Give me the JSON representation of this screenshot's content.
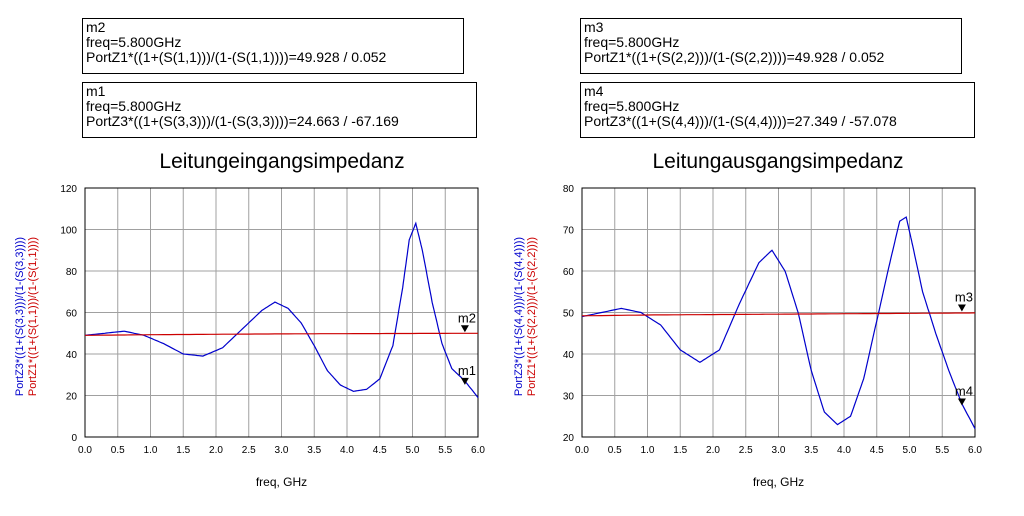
{
  "chart_data": [
    {
      "type": "line",
      "title": "Leitungeingangsimpedanz",
      "xlabel": "freq, GHz",
      "ylabel_series": [
        "PortZ3*((1+(S(3,3)))/(1-(S(3,3))))",
        "PortZ1*((1+(S(1,1)))/(1-(S(1,1))))"
      ],
      "xlim": [
        0,
        6
      ],
      "ylim": [
        0,
        120
      ],
      "xticks": [
        "0.0",
        "0.5",
        "1.0",
        "1.5",
        "2.0",
        "2.5",
        "3.0",
        "3.5",
        "4.0",
        "4.5",
        "5.0",
        "5.5",
        "6.0"
      ],
      "yticks": [
        "0",
        "20",
        "40",
        "60",
        "80",
        "100",
        "120"
      ],
      "grid": true,
      "series": [
        {
          "color": "#0000cc",
          "x": [
            0,
            0.3,
            0.6,
            0.9,
            1.2,
            1.5,
            1.8,
            2.1,
            2.4,
            2.7,
            2.9,
            3.1,
            3.3,
            3.5,
            3.7,
            3.9,
            4.1,
            4.3,
            4.5,
            4.7,
            4.85,
            4.95,
            5.05,
            5.15,
            5.3,
            5.45,
            5.6,
            5.8,
            6.0
          ],
          "y": [
            49,
            50,
            51,
            49,
            45,
            40,
            39,
            43,
            52,
            61,
            65,
            62,
            55,
            44,
            32,
            25,
            22,
            23,
            28,
            44,
            72,
            95,
            103,
            90,
            65,
            45,
            33,
            27,
            19
          ]
        },
        {
          "color": "#cc0000",
          "x": [
            0,
            1,
            2,
            3,
            4,
            5,
            6
          ],
          "y": [
            49,
            49.3,
            49.5,
            49.7,
            49.8,
            49.9,
            50
          ]
        }
      ],
      "markers": [
        {
          "label": "m2",
          "x": 5.8,
          "y": 50
        },
        {
          "label": "m1",
          "x": 5.8,
          "y": 24.663
        }
      ]
    },
    {
      "type": "line",
      "title": "Leitungausgangsimpedanz",
      "xlabel": "freq, GHz",
      "ylabel_series": [
        "PortZ3*((1+(S(4,4)))/(1-(S(4,4))))",
        "PortZ1*((1+(S(2,2)))/(1-(S(2,2))))"
      ],
      "xlim": [
        0,
        6
      ],
      "ylim": [
        20,
        80
      ],
      "xticks": [
        "0.0",
        "0.5",
        "1.0",
        "1.5",
        "2.0",
        "2.5",
        "3.0",
        "3.5",
        "4.0",
        "4.5",
        "5.0",
        "5.5",
        "6.0"
      ],
      "yticks": [
        "20",
        "30",
        "40",
        "50",
        "60",
        "70",
        "80"
      ],
      "grid": true,
      "series": [
        {
          "color": "#0000cc",
          "x": [
            0,
            0.3,
            0.6,
            0.9,
            1.2,
            1.5,
            1.8,
            2.1,
            2.4,
            2.7,
            2.9,
            3.1,
            3.3,
            3.5,
            3.7,
            3.9,
            4.1,
            4.3,
            4.5,
            4.7,
            4.85,
            4.95,
            5.05,
            5.2,
            5.4,
            5.6,
            5.8,
            6.0
          ],
          "y": [
            49,
            50,
            51,
            50,
            47,
            41,
            38,
            41,
            52,
            62,
            65,
            60,
            50,
            36,
            26,
            23,
            25,
            34,
            48,
            62,
            72,
            73,
            66,
            55,
            45,
            36,
            28,
            22
          ]
        },
        {
          "color": "#cc0000",
          "x": [
            0,
            1,
            2,
            3,
            4,
            5,
            6
          ],
          "y": [
            49.2,
            49.4,
            49.5,
            49.6,
            49.7,
            49.8,
            49.9
          ]
        }
      ],
      "markers": [
        {
          "label": "m3",
          "x": 5.8,
          "y": 50
        },
        {
          "label": "m4",
          "x": 5.8,
          "y": 27.349
        }
      ]
    }
  ],
  "marker_boxes": {
    "m2": {
      "name": "m2",
      "freq": "freq=5.800GHz",
      "expr": "PortZ1*((1+(S(1,1)))/(1-(S(1,1))))=49.928 / 0.052"
    },
    "m1": {
      "name": "m1",
      "freq": "freq=5.800GHz",
      "expr": "PortZ3*((1+(S(3,3)))/(1-(S(3,3))))=24.663 / -67.169"
    },
    "m3": {
      "name": "m3",
      "freq": "freq=5.800GHz",
      "expr": "PortZ1*((1+(S(2,2)))/(1-(S(2,2))))=49.928 / 0.052"
    },
    "m4": {
      "name": "m4",
      "freq": "freq=5.800GHz",
      "expr": "PortZ3*((1+(S(4,4)))/(1-(S(4,4))))=27.349 / -57.078"
    }
  }
}
